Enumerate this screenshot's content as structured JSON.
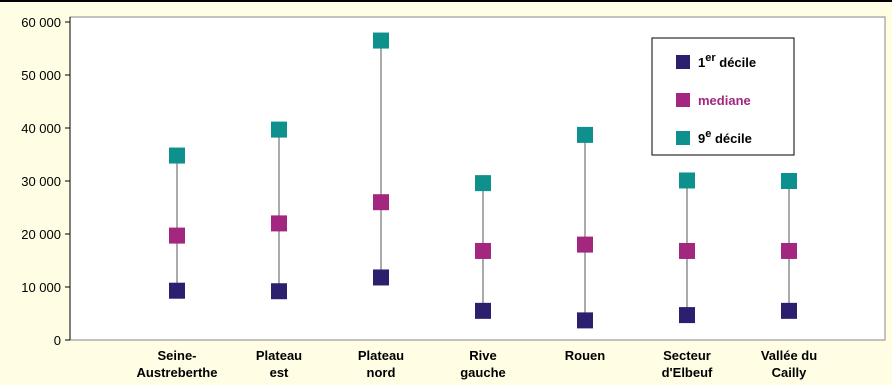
{
  "chart_data": {
    "type": "scatter",
    "categories": [
      [
        "Seine-",
        "Austreberthe"
      ],
      [
        "Plateau",
        "est"
      ],
      [
        "Plateau",
        "nord"
      ],
      [
        "Rive",
        "gauche"
      ],
      [
        "Rouen",
        ""
      ],
      [
        "Secteur",
        "d'Elbeuf"
      ],
      [
        "Vallée du",
        "Cailly"
      ]
    ],
    "ylim": [
      0,
      60000
    ],
    "yticks": [
      0,
      10000,
      20000,
      30000,
      40000,
      50000,
      60000
    ],
    "ytick_labels": [
      "0",
      "10 000",
      "20 000",
      "30 000",
      "40 000",
      "50 000",
      "60 000"
    ],
    "series": [
      {
        "key": "d1",
        "color": "#2b1f6e",
        "values": [
          9300,
          9200,
          11800,
          5500,
          3700,
          4700,
          5500
        ]
      },
      {
        "key": "med",
        "color": "#a3267f",
        "values": [
          19700,
          22000,
          26000,
          16800,
          18000,
          16800,
          16800
        ]
      },
      {
        "key": "d9",
        "color": "#0e918c",
        "values": [
          34800,
          39700,
          56500,
          29600,
          38700,
          30100,
          30000
        ]
      }
    ],
    "grid": false,
    "legend_position": "top-right",
    "legend": [
      {
        "key": "d1",
        "label_main": "1",
        "label_sup": "er",
        "label_tail": " décile",
        "color": "#2b1f6e",
        "text_color": "#000000"
      },
      {
        "key": "med",
        "label_main": "mediane",
        "label_sup": "",
        "label_tail": "",
        "color": "#a3267f",
        "text_color": "#a3267f"
      },
      {
        "key": "d9",
        "label_main": "9",
        "label_sup": "e",
        "label_tail": " décile",
        "color": "#0e918c",
        "text_color": "#000000"
      }
    ]
  },
  "colors": {
    "background": "#fffde3",
    "plot_area": "#ffffff",
    "whisker": "#555555"
  }
}
